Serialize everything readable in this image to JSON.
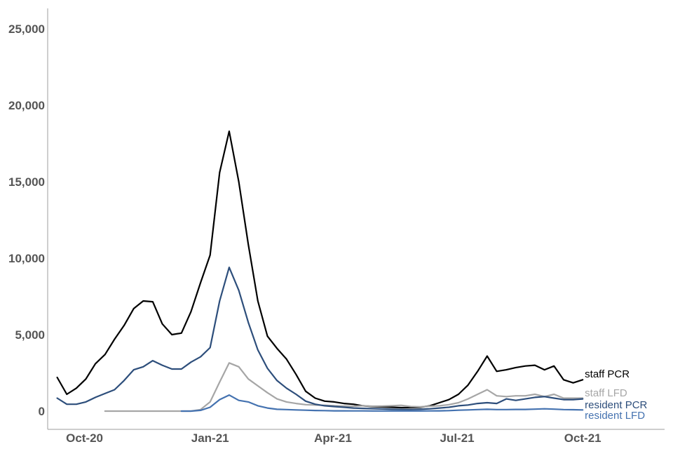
{
  "chart_data": {
    "type": "line",
    "title": "",
    "xlabel": "",
    "ylabel": "",
    "ylim": [
      0,
      25000
    ],
    "xlim": [
      "2020-09-04",
      "2021-11-30"
    ],
    "y_ticks": [
      0,
      5000,
      10000,
      15000,
      20000,
      25000
    ],
    "y_tick_labels": [
      "0",
      "5,000",
      "10,000",
      "15,000",
      "20,000",
      "25,000"
    ],
    "x_ticks": [
      "2020-10-01",
      "2021-01-01",
      "2021-04-01",
      "2021-07-01",
      "2021-10-01"
    ],
    "x_tick_labels": [
      "Oct-20",
      "Jan-21",
      "Apr-21",
      "Jul-21",
      "Oct-21"
    ],
    "grid": false,
    "legend": "direct labels at line ends (right)",
    "series": [
      {
        "name": "staff PCR",
        "color": "#000000",
        "points": [
          [
            "2020-09-11",
            2200
          ],
          [
            "2020-09-18",
            1100
          ],
          [
            "2020-09-25",
            1500
          ],
          [
            "2020-10-02",
            2100
          ],
          [
            "2020-10-09",
            3100
          ],
          [
            "2020-10-16",
            3700
          ],
          [
            "2020-10-23",
            4700
          ],
          [
            "2020-10-30",
            5600
          ],
          [
            "2020-11-06",
            6700
          ],
          [
            "2020-11-13",
            7200
          ],
          [
            "2020-11-20",
            7150
          ],
          [
            "2020-11-27",
            5700
          ],
          [
            "2020-12-04",
            5000
          ],
          [
            "2020-12-11",
            5100
          ],
          [
            "2020-12-18",
            6500
          ],
          [
            "2020-12-25",
            8400
          ],
          [
            "2021-01-01",
            10200
          ],
          [
            "2021-01-08",
            15600
          ],
          [
            "2021-01-15",
            18300
          ],
          [
            "2021-01-22",
            15000
          ],
          [
            "2021-01-29",
            10900
          ],
          [
            "2021-02-05",
            7200
          ],
          [
            "2021-02-12",
            4900
          ],
          [
            "2021-02-19",
            4100
          ],
          [
            "2021-02-26",
            3400
          ],
          [
            "2021-03-05",
            2400
          ],
          [
            "2021-03-12",
            1300
          ],
          [
            "2021-03-19",
            850
          ],
          [
            "2021-03-26",
            650
          ],
          [
            "2021-04-02",
            600
          ],
          [
            "2021-04-09",
            500
          ],
          [
            "2021-04-16",
            450
          ],
          [
            "2021-04-23",
            350
          ],
          [
            "2021-04-30",
            300
          ],
          [
            "2021-05-07",
            280
          ],
          [
            "2021-05-14",
            250
          ],
          [
            "2021-05-21",
            230
          ],
          [
            "2021-05-28",
            230
          ],
          [
            "2021-06-04",
            250
          ],
          [
            "2021-06-11",
            350
          ],
          [
            "2021-06-18",
            550
          ],
          [
            "2021-06-25",
            750
          ],
          [
            "2021-07-02",
            1100
          ],
          [
            "2021-07-09",
            1700
          ],
          [
            "2021-07-16",
            2600
          ],
          [
            "2021-07-23",
            3600
          ],
          [
            "2021-07-30",
            2600
          ],
          [
            "2021-08-06",
            2700
          ],
          [
            "2021-08-13",
            2850
          ],
          [
            "2021-08-20",
            2950
          ],
          [
            "2021-08-27",
            3000
          ],
          [
            "2021-09-03",
            2700
          ],
          [
            "2021-09-10",
            2950
          ],
          [
            "2021-09-17",
            2050
          ],
          [
            "2021-09-24",
            1850
          ],
          [
            "2021-10-01",
            2050
          ]
        ]
      },
      {
        "name": "staff LFD",
        "color": "#a6a6a6",
        "points": [
          [
            "2020-10-16",
            0
          ],
          [
            "2020-10-23",
            0
          ],
          [
            "2020-10-30",
            0
          ],
          [
            "2020-11-06",
            0
          ],
          [
            "2020-11-13",
            0
          ],
          [
            "2020-11-20",
            0
          ],
          [
            "2020-11-27",
            0
          ],
          [
            "2020-12-04",
            0
          ],
          [
            "2020-12-11",
            0
          ],
          [
            "2020-12-18",
            0
          ],
          [
            "2020-12-25",
            100
          ],
          [
            "2021-01-01",
            600
          ],
          [
            "2021-01-08",
            1900
          ],
          [
            "2021-01-15",
            3150
          ],
          [
            "2021-01-22",
            2900
          ],
          [
            "2021-01-29",
            2100
          ],
          [
            "2021-02-05",
            1650
          ],
          [
            "2021-02-12",
            1200
          ],
          [
            "2021-02-19",
            800
          ],
          [
            "2021-02-26",
            600
          ],
          [
            "2021-03-05",
            500
          ],
          [
            "2021-03-12",
            420
          ],
          [
            "2021-03-19",
            400
          ],
          [
            "2021-03-26",
            380
          ],
          [
            "2021-04-02",
            350
          ],
          [
            "2021-04-09",
            330
          ],
          [
            "2021-04-16",
            320
          ],
          [
            "2021-04-23",
            350
          ],
          [
            "2021-04-30",
            320
          ],
          [
            "2021-05-07",
            330
          ],
          [
            "2021-05-14",
            350
          ],
          [
            "2021-05-21",
            380
          ],
          [
            "2021-05-28",
            300
          ],
          [
            "2021-06-04",
            280
          ],
          [
            "2021-06-11",
            320
          ],
          [
            "2021-06-18",
            350
          ],
          [
            "2021-06-25",
            420
          ],
          [
            "2021-07-02",
            550
          ],
          [
            "2021-07-09",
            800
          ],
          [
            "2021-07-16",
            1100
          ],
          [
            "2021-07-23",
            1400
          ],
          [
            "2021-07-30",
            1000
          ],
          [
            "2021-08-06",
            950
          ],
          [
            "2021-08-13",
            1000
          ],
          [
            "2021-08-20",
            1000
          ],
          [
            "2021-08-27",
            1100
          ],
          [
            "2021-09-03",
            950
          ],
          [
            "2021-09-10",
            1100
          ],
          [
            "2021-09-17",
            850
          ],
          [
            "2021-09-24",
            850
          ],
          [
            "2021-10-01",
            850
          ]
        ]
      },
      {
        "name": "resident PCR",
        "color": "#2d4e7b",
        "points": [
          [
            "2020-09-11",
            850
          ],
          [
            "2020-09-18",
            450
          ],
          [
            "2020-09-25",
            450
          ],
          [
            "2020-10-02",
            600
          ],
          [
            "2020-10-09",
            900
          ],
          [
            "2020-10-16",
            1150
          ],
          [
            "2020-10-23",
            1400
          ],
          [
            "2020-10-30",
            2000
          ],
          [
            "2020-11-06",
            2700
          ],
          [
            "2020-11-13",
            2900
          ],
          [
            "2020-11-20",
            3300
          ],
          [
            "2020-11-27",
            3000
          ],
          [
            "2020-12-04",
            2750
          ],
          [
            "2020-12-11",
            2750
          ],
          [
            "2020-12-18",
            3200
          ],
          [
            "2020-12-25",
            3550
          ],
          [
            "2021-01-01",
            4150
          ],
          [
            "2021-01-08",
            7200
          ],
          [
            "2021-01-15",
            9400
          ],
          [
            "2021-01-22",
            7900
          ],
          [
            "2021-01-29",
            5800
          ],
          [
            "2021-02-05",
            4000
          ],
          [
            "2021-02-12",
            2800
          ],
          [
            "2021-02-19",
            2000
          ],
          [
            "2021-02-26",
            1500
          ],
          [
            "2021-03-05",
            1100
          ],
          [
            "2021-03-12",
            650
          ],
          [
            "2021-03-19",
            450
          ],
          [
            "2021-03-26",
            350
          ],
          [
            "2021-04-02",
            300
          ],
          [
            "2021-04-09",
            250
          ],
          [
            "2021-04-16",
            200
          ],
          [
            "2021-04-23",
            180
          ],
          [
            "2021-04-30",
            160
          ],
          [
            "2021-05-07",
            140
          ],
          [
            "2021-05-14",
            120
          ],
          [
            "2021-05-21",
            110
          ],
          [
            "2021-05-28",
            100
          ],
          [
            "2021-06-04",
            120
          ],
          [
            "2021-06-11",
            150
          ],
          [
            "2021-06-18",
            200
          ],
          [
            "2021-06-25",
            250
          ],
          [
            "2021-07-02",
            350
          ],
          [
            "2021-07-09",
            400
          ],
          [
            "2021-07-16",
            500
          ],
          [
            "2021-07-23",
            550
          ],
          [
            "2021-07-30",
            500
          ],
          [
            "2021-08-06",
            800
          ],
          [
            "2021-08-13",
            700
          ],
          [
            "2021-08-20",
            800
          ],
          [
            "2021-08-27",
            900
          ],
          [
            "2021-09-03",
            950
          ],
          [
            "2021-09-10",
            850
          ],
          [
            "2021-09-17",
            750
          ],
          [
            "2021-09-24",
            750
          ],
          [
            "2021-10-01",
            800
          ]
        ]
      },
      {
        "name": "resident LFD",
        "color": "#4472b0",
        "points": [
          [
            "2020-12-11",
            0
          ],
          [
            "2020-12-18",
            0
          ],
          [
            "2020-12-25",
            50
          ],
          [
            "2021-01-01",
            250
          ],
          [
            "2021-01-08",
            750
          ],
          [
            "2021-01-15",
            1050
          ],
          [
            "2021-01-22",
            700
          ],
          [
            "2021-01-29",
            600
          ],
          [
            "2021-02-05",
            350
          ],
          [
            "2021-02-12",
            200
          ],
          [
            "2021-02-19",
            120
          ],
          [
            "2021-02-26",
            100
          ],
          [
            "2021-03-05",
            80
          ],
          [
            "2021-03-12",
            60
          ],
          [
            "2021-03-19",
            40
          ],
          [
            "2021-03-26",
            30
          ],
          [
            "2021-04-02",
            20
          ],
          [
            "2021-04-09",
            20
          ],
          [
            "2021-04-16",
            15
          ],
          [
            "2021-04-23",
            15
          ],
          [
            "2021-04-30",
            10
          ],
          [
            "2021-05-07",
            10
          ],
          [
            "2021-05-14",
            10
          ],
          [
            "2021-05-21",
            10
          ],
          [
            "2021-05-28",
            10
          ],
          [
            "2021-06-04",
            10
          ],
          [
            "2021-06-11",
            15
          ],
          [
            "2021-06-18",
            20
          ],
          [
            "2021-06-25",
            30
          ],
          [
            "2021-07-02",
            60
          ],
          [
            "2021-07-09",
            80
          ],
          [
            "2021-07-16",
            100
          ],
          [
            "2021-07-23",
            120
          ],
          [
            "2021-07-30",
            100
          ],
          [
            "2021-08-06",
            100
          ],
          [
            "2021-08-13",
            110
          ],
          [
            "2021-08-20",
            110
          ],
          [
            "2021-08-27",
            130
          ],
          [
            "2021-09-03",
            150
          ],
          [
            "2021-09-10",
            130
          ],
          [
            "2021-09-17",
            100
          ],
          [
            "2021-09-24",
            90
          ],
          [
            "2021-10-01",
            80
          ]
        ]
      }
    ]
  }
}
